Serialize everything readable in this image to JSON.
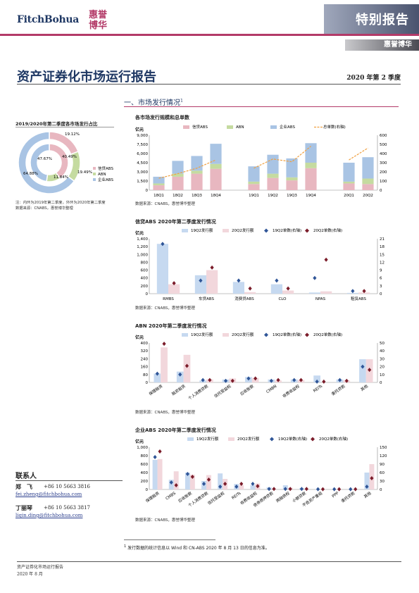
{
  "header": {
    "logo_text": "FitchBohua",
    "logo_badge_line1": "惠誉",
    "logo_badge_line2": "博华",
    "report_type": "特别报告",
    "brand": "惠誉博华"
  },
  "doc": {
    "title": "资产证券化市场运行报告",
    "quarter": "2020 年第 2 季度",
    "section": "一、市场发行情况",
    "section_sup": "1"
  },
  "left": {
    "pie_title": "2019/2020年第二季度各市场发行占比",
    "note1": "注：内环为2019年第二季度，外环为2020年第二季度",
    "note2": "数据来源：CNABS，惠誉博华整理"
  },
  "contacts": {
    "title": "联系人",
    "people": [
      {
        "name": "郑　飞",
        "phone": "+86 10 5663 3816",
        "email": "fei.zheng@fitchbohua.com"
      },
      {
        "name": "丁丽琴",
        "phone": "+86 10 5663 3817",
        "email": "liqin.ding@fitchbohua.com"
      }
    ]
  },
  "footnote": {
    "sup": "1",
    "text": "发行数据的统计信息以 Wind 和 CN-ABS 2020 年 8 月 13 日的信息为准。"
  },
  "footer": {
    "line1": "资产证券化市场运行报告",
    "line2": "2020 年 8 月"
  },
  "colors": {
    "credit": "#e8b7c0",
    "abn": "#c5dba0",
    "corp": "#a9c4e4",
    "count": "#f0a040",
    "navy": "#1f3864",
    "accent": "#b33a68",
    "q19": "#c6d9f0",
    "q20": "#f2d7dc",
    "d19": "#2f5597",
    "d20": "#7b1c2a"
  },
  "chart_data": [
    {
      "type": "pie",
      "title": "2019/2020年第二季度各市场发行占比",
      "categories": [
        "信贷ABS",
        "ABN",
        "企业ABS"
      ],
      "outer_2020Q2": [
        19.12,
        16.0,
        64.88
      ],
      "inner_2019Q2": [
        40.49,
        11.84,
        47.67
      ],
      "labels_outer": [
        "19.12%",
        "64.88%"
      ],
      "labels_inner": [
        "40.49%",
        "11.84%",
        "47.67%"
      ],
      "label_extra": "19.49%"
    },
    {
      "type": "bar",
      "title": "各市场发行规模和总单数",
      "ylabel": "亿元",
      "ylim": [
        0,
        9000
      ],
      "y2lim": [
        0,
        600
      ],
      "yticks": [
        "9,000",
        "7,500",
        "6,000",
        "4,500",
        "3,000",
        "1,500",
        "0"
      ],
      "y2ticks": [
        "600",
        "500",
        "400",
        "300",
        "200",
        "100",
        "0"
      ],
      "categories": [
        "18Q1",
        "18Q2",
        "18Q3",
        "18Q4",
        "19Q1",
        "19Q2",
        "19Q3",
        "19Q4",
        "20Q1",
        "20Q2"
      ],
      "series": [
        {
          "name": "信贷ABS",
          "values": [
            800,
            2200,
            2700,
            3500,
            1000,
            2000,
            1600,
            3600,
            1100,
            1000
          ]
        },
        {
          "name": "ABN",
          "values": [
            300,
            500,
            500,
            800,
            400,
            700,
            500,
            900,
            300,
            900
          ]
        },
        {
          "name": "企业ABS",
          "values": [
            1100,
            2100,
            2400,
            3300,
            2500,
            3100,
            3100,
            3200,
            3100,
            3500
          ]
        },
        {
          "name": "总单数(右轴)",
          "values": [
            130,
            180,
            240,
            330,
            240,
            340,
            310,
            480,
            330,
            460
          ]
        }
      ],
      "legend": "top"
    },
    {
      "type": "bar",
      "title": "信贷ABS 2020年第二季度发行情况",
      "ylabel": "亿元",
      "ylim": [
        0,
        1400
      ],
      "y2lim": [
        0,
        21
      ],
      "yticks": [
        "1,400",
        "1,200",
        "1,000",
        "800",
        "600",
        "400",
        "200",
        "0"
      ],
      "y2ticks": [
        "21",
        "18",
        "15",
        "12",
        "9",
        "6",
        "3",
        "0"
      ],
      "categories": [
        "RMBS",
        "车贷ABS",
        "消费贷ABS",
        "CLO",
        "NPAS",
        "租赁ABS"
      ],
      "series": [
        {
          "name": "19Q2发行额",
          "values": [
            1270,
            470,
            300,
            240,
            30,
            20
          ]
        },
        {
          "name": "20Q2发行额",
          "values": [
            240,
            600,
            40,
            80,
            60,
            30
          ]
        },
        {
          "name": "19Q2单数(右轴)",
          "values": [
            19,
            5,
            5,
            5,
            6,
            1
          ]
        },
        {
          "name": "20Q2单数(右轴)",
          "values": [
            4,
            10,
            2,
            2,
            13,
            1
          ]
        }
      ],
      "legend": "top"
    },
    {
      "type": "bar",
      "title": "ABN 2020年第二季度发行情况",
      "ylabel": "亿元",
      "ylim": [
        0,
        400
      ],
      "y2lim": [
        0,
        50
      ],
      "yticks": [
        "400",
        "320",
        "240",
        "160",
        "80",
        "0"
      ],
      "y2ticks": [
        "50",
        "40",
        "30",
        "20",
        "10",
        "0"
      ],
      "categories": [
        "保理融资",
        "融资租赁",
        "个人消费贷款",
        "信托受益权",
        "应收账款",
        "CMBN",
        "收费收益权",
        "REITs",
        "委托贷款",
        "其他"
      ],
      "series": [
        {
          "name": "19Q2发行额",
          "values": [
            90,
            110,
            20,
            30,
            55,
            30,
            30,
            70,
            30,
            235
          ]
        },
        {
          "name": "20Q2发行额",
          "values": [
            355,
            280,
            30,
            40,
            45,
            20,
            25,
            0,
            20,
            235
          ]
        },
        {
          "name": "19Q2单数(右轴)",
          "values": [
            11,
            10,
            3,
            2,
            5,
            2,
            3,
            1,
            3,
            20
          ]
        },
        {
          "name": "20Q2单数(右轴)",
          "values": [
            49,
            21,
            3,
            2,
            5,
            3,
            3,
            1,
            2,
            16
          ]
        }
      ],
      "legend": "top"
    },
    {
      "type": "bar",
      "title": "企业ABS 2020年第二季度发行情况",
      "ylabel": "亿元",
      "ylim": [
        0,
        1000
      ],
      "y2lim": [
        0,
        150
      ],
      "yticks": [
        "1,000",
        "800",
        "600",
        "400",
        "200",
        "0"
      ],
      "y2ticks": [
        "150",
        "120",
        "90",
        "60",
        "30",
        "0"
      ],
      "categories": [
        "保理融资",
        "CMBS",
        "应收账款",
        "个人消费贷款",
        "信托受益权",
        "REITs",
        "收费收益权",
        "债券质押贷款",
        "两融债权",
        "小额贷款",
        "不良资产重组",
        "PPP",
        "委托贷款",
        "其他"
      ],
      "series": [
        {
          "name": "19Q2发行额",
          "values": [
            700,
            230,
            400,
            200,
            380,
            130,
            100,
            50,
            100,
            30,
            10,
            5,
            5,
            400
          ]
        },
        {
          "name": "20Q2发行额",
          "values": [
            720,
            430,
            350,
            340,
            250,
            100,
            140,
            20,
            40,
            10,
            5,
            5,
            5,
            600
          ]
        },
        {
          "name": "19Q2单数(右轴)",
          "values": [
            115,
            25,
            55,
            20,
            10,
            10,
            20,
            2,
            2,
            2,
            1,
            1,
            1,
            10
          ]
        },
        {
          "name": "20Q2单数(右轴)",
          "values": [
            135,
            15,
            45,
            35,
            20,
            20,
            12,
            2,
            2,
            2,
            1,
            1,
            1,
            40
          ]
        }
      ],
      "legend": "top"
    }
  ],
  "sources": {
    "c1": "数据来源：CNABS，惠誉博华整理"
  }
}
